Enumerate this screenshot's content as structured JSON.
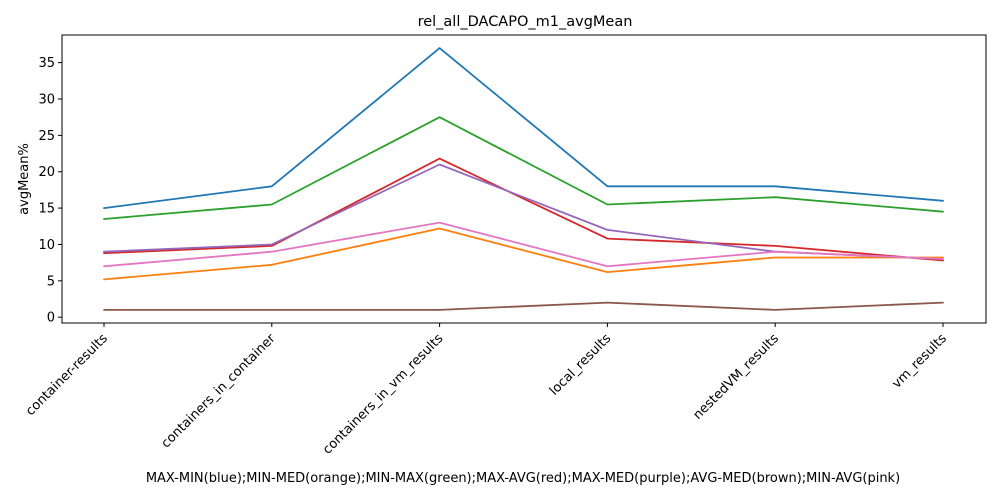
{
  "chart_data": {
    "type": "line",
    "title": "rel_all_DACAPO_m1_avgMean",
    "xlabel": "MAX-MIN(blue);MIN-MED(orange);MIN-MAX(green);MAX-AVG(red);MAX-MED(purple);AVG-MED(brown);MIN-AVG(pink)",
    "ylabel": "avgMean%",
    "categories": [
      "container-results",
      "containers_in_container",
      "containers_in_vm_results",
      "local_results",
      "nestedVM_results",
      "vm_results"
    ],
    "yticks": [
      0,
      5,
      10,
      15,
      20,
      25,
      30,
      35
    ],
    "ylim": [
      -0.8,
      38.8
    ],
    "grid": false,
    "series": [
      {
        "color": "#1f77b4",
        "values": [
          15.0,
          18.0,
          37.0,
          18.0,
          18.0,
          16.0
        ]
      },
      {
        "color": "#ff7f0e",
        "values": [
          5.2,
          7.2,
          12.2,
          6.2,
          8.2,
          8.2
        ]
      },
      {
        "color": "#2ca02c",
        "values": [
          13.5,
          15.5,
          27.5,
          15.5,
          16.5,
          14.5
        ]
      },
      {
        "color": "#d62728",
        "values": [
          8.8,
          9.8,
          21.8,
          10.8,
          9.8,
          7.8
        ]
      },
      {
        "color": "#9467bd",
        "values": [
          9.0,
          10.0,
          21.0,
          12.0,
          9.0,
          8.0
        ]
      },
      {
        "color": "#8c564b",
        "values": [
          1.0,
          1.0,
          1.0,
          2.0,
          1.0,
          2.0
        ]
      },
      {
        "color": "#e377c2",
        "values": [
          7.0,
          9.0,
          13.0,
          7.0,
          9.0,
          8.0
        ]
      }
    ]
  }
}
